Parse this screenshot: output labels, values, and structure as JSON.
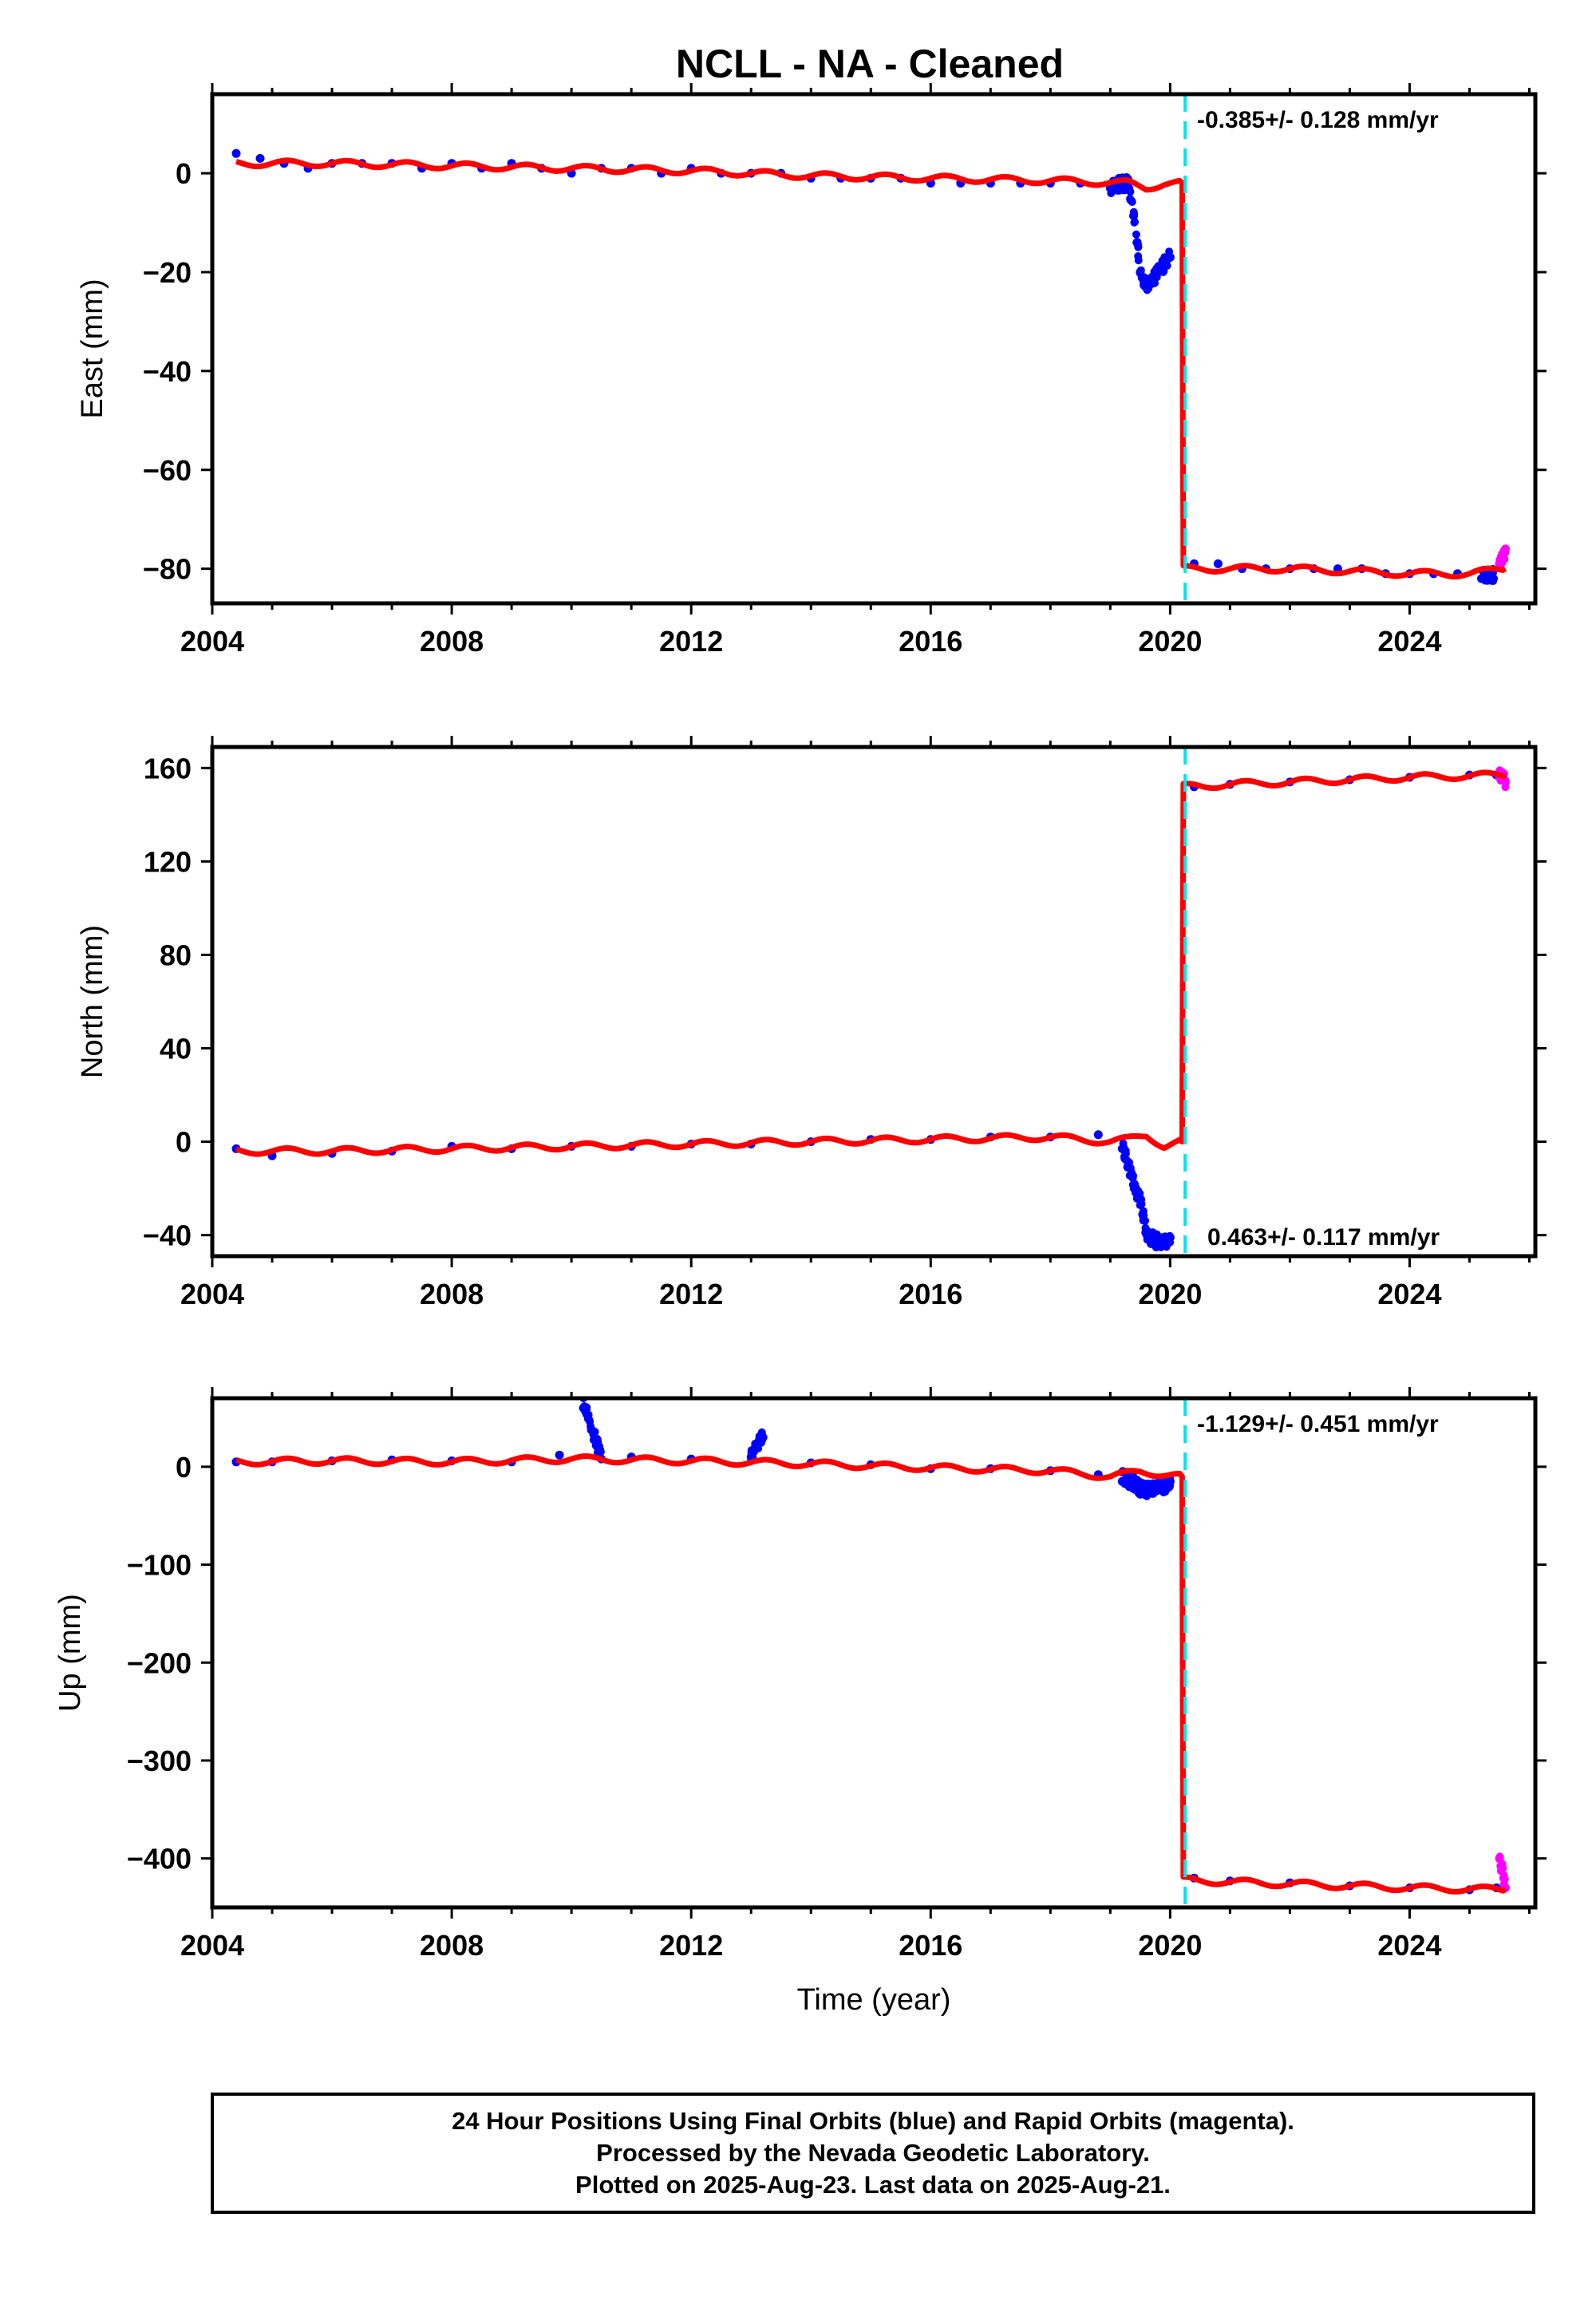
{
  "title": "NCLL  - NA - Cleaned",
  "footer_lines": [
    "24 Hour Positions Using Final Orbits (blue) and Rapid Orbits (magenta).",
    "Processed by the Nevada Geodetic Laboratory.",
    "Plotted on 2025-Aug-23. Last data on 2025-Aug-21."
  ],
  "colors": {
    "final_orbits": "#0000ff",
    "rapid_orbits": "#ff00ff",
    "model": "#ff0000",
    "event": "#00e5ee",
    "axis": "#000000"
  },
  "chart_data": [
    {
      "type": "scatter",
      "component": "East",
      "ylabel": "East (mm)",
      "xlabel": "",
      "xlim": [
        2004.0,
        2026.1
      ],
      "ylim": [
        -87,
        16
      ],
      "xticks": [
        2004,
        2008,
        2012,
        2016,
        2020,
        2024
      ],
      "yticks": [
        -80,
        -60,
        -40,
        -20,
        0
      ],
      "event_line_x": 2020.25,
      "rate_text": "-0.385+/- 0.128 mm/yr",
      "rate_position": "top-right",
      "series": [
        {
          "type": "scatter",
          "color": "final",
          "points": [
            [
              2004.4,
              4
            ],
            [
              2004.8,
              3
            ],
            [
              2005.2,
              2
            ],
            [
              2005.6,
              1
            ],
            [
              2006.0,
              2
            ],
            [
              2006.5,
              2
            ],
            [
              2007.0,
              2
            ],
            [
              2007.5,
              1
            ],
            [
              2008.0,
              2
            ],
            [
              2008.5,
              1
            ],
            [
              2009.0,
              2
            ],
            [
              2009.5,
              1
            ],
            [
              2010.0,
              0
            ],
            [
              2010.5,
              1
            ],
            [
              2011.0,
              1
            ],
            [
              2011.5,
              0
            ],
            [
              2012.0,
              1
            ],
            [
              2012.5,
              0
            ],
            [
              2013.0,
              0
            ],
            [
              2013.5,
              0
            ],
            [
              2014.0,
              -1
            ],
            [
              2014.5,
              -1
            ],
            [
              2015.0,
              -1
            ],
            [
              2015.5,
              -1
            ],
            [
              2016.0,
              -2
            ],
            [
              2016.5,
              -2
            ],
            [
              2017.0,
              -2
            ],
            [
              2017.5,
              -2
            ],
            [
              2018.0,
              -2
            ],
            [
              2018.5,
              -2
            ],
            [
              2019.0,
              -3
            ],
            [
              2019.3,
              -3
            ],
            [
              2019.45,
              -14
            ],
            [
              2019.5,
              -20
            ],
            [
              2019.6,
              -22
            ],
            [
              2019.7,
              -21
            ],
            [
              2019.8,
              -19
            ],
            [
              2019.9,
              -18
            ],
            [
              2020.0,
              -17
            ],
            [
              2020.4,
              -79
            ],
            [
              2020.8,
              -79
            ],
            [
              2021.2,
              -80
            ],
            [
              2021.6,
              -80
            ],
            [
              2022.0,
              -80
            ],
            [
              2022.4,
              -80
            ],
            [
              2022.8,
              -80
            ],
            [
              2023.2,
              -80
            ],
            [
              2023.6,
              -81
            ],
            [
              2024.0,
              -81
            ],
            [
              2024.4,
              -81
            ],
            [
              2024.8,
              -81
            ],
            [
              2025.2,
              -82
            ],
            [
              2025.4,
              -82
            ]
          ]
        },
        {
          "type": "scatter",
          "color": "rapid",
          "points": [
            [
              2025.5,
              -79
            ],
            [
              2025.55,
              -77
            ],
            [
              2025.6,
              -76
            ]
          ]
        },
        {
          "type": "line",
          "color": "model",
          "points": [
            [
              2004.4,
              2
            ],
            [
              2005.0,
              2
            ],
            [
              2006.0,
              2
            ],
            [
              2008.0,
              1.5
            ],
            [
              2010.0,
              1
            ],
            [
              2012.0,
              0.5
            ],
            [
              2014.0,
              -0.5
            ],
            [
              2016.0,
              -1
            ],
            [
              2018.0,
              -1.5
            ],
            [
              2019.3,
              -2
            ],
            [
              2019.6,
              -3
            ],
            [
              2019.9,
              -2
            ],
            [
              2020.2,
              -2
            ],
            [
              2020.22,
              -80
            ],
            [
              2021.0,
              -80
            ],
            [
              2022.0,
              -80
            ],
            [
              2023.0,
              -80.5
            ],
            [
              2024.0,
              -81
            ],
            [
              2025.0,
              -81
            ],
            [
              2025.6,
              -80
            ]
          ]
        }
      ]
    },
    {
      "type": "scatter",
      "component": "North",
      "ylabel": "North (mm)",
      "xlabel": "",
      "xlim": [
        2004.0,
        2026.1
      ],
      "ylim": [
        -49,
        169
      ],
      "xticks": [
        2004,
        2008,
        2012,
        2016,
        2020,
        2024
      ],
      "yticks": [
        -40,
        0,
        40,
        80,
        120,
        160
      ],
      "event_line_x": 2020.25,
      "rate_text": "0.463+/- 0.117 mm/yr",
      "rate_position": "bottom-right",
      "series": [
        {
          "type": "scatter",
          "color": "final",
          "points": [
            [
              2004.4,
              -3
            ],
            [
              2005.0,
              -6
            ],
            [
              2006.0,
              -5
            ],
            [
              2007.0,
              -4
            ],
            [
              2008.0,
              -2
            ],
            [
              2009.0,
              -3
            ],
            [
              2010.0,
              -2
            ],
            [
              2011.0,
              -2
            ],
            [
              2012.0,
              -1
            ],
            [
              2013.0,
              -1
            ],
            [
              2014.0,
              0
            ],
            [
              2015.0,
              1
            ],
            [
              2016.0,
              1
            ],
            [
              2017.0,
              2
            ],
            [
              2018.0,
              2
            ],
            [
              2018.8,
              3
            ],
            [
              2019.2,
              -3
            ],
            [
              2019.4,
              -20
            ],
            [
              2019.5,
              -25
            ],
            [
              2019.6,
              -38
            ],
            [
              2019.7,
              -40
            ],
            [
              2019.8,
              -41
            ],
            [
              2019.9,
              -42
            ],
            [
              2020.0,
              -41
            ],
            [
              2020.4,
              152
            ],
            [
              2021.0,
              153
            ],
            [
              2022.0,
              154
            ],
            [
              2023.0,
              155
            ],
            [
              2024.0,
              156
            ],
            [
              2025.0,
              157
            ],
            [
              2025.45,
              157
            ]
          ]
        },
        {
          "type": "scatter",
          "color": "rapid",
          "points": [
            [
              2025.5,
              156
            ],
            [
              2025.55,
              158
            ],
            [
              2025.6,
              154
            ]
          ]
        },
        {
          "type": "line",
          "color": "model",
          "points": [
            [
              2004.4,
              -4
            ],
            [
              2006.0,
              -4
            ],
            [
              2008.0,
              -3
            ],
            [
              2010.0,
              -2
            ],
            [
              2012.0,
              -1
            ],
            [
              2014.0,
              0
            ],
            [
              2016.0,
              1
            ],
            [
              2018.0,
              2
            ],
            [
              2019.0,
              0
            ],
            [
              2019.3,
              1
            ],
            [
              2019.6,
              3
            ],
            [
              2019.9,
              -2
            ],
            [
              2020.2,
              0
            ],
            [
              2020.22,
              152
            ],
            [
              2021.0,
              153
            ],
            [
              2022.0,
              154
            ],
            [
              2023.0,
              155
            ],
            [
              2024.0,
              156
            ],
            [
              2025.6,
              157
            ]
          ]
        }
      ]
    },
    {
      "type": "scatter",
      "component": "Up",
      "ylabel": "Up (mm)",
      "xlabel": "Time (year)",
      "xlim": [
        2004.0,
        2026.1
      ],
      "ylim": [
        -450,
        70
      ],
      "xticks": [
        2004,
        2008,
        2012,
        2016,
        2020,
        2024
      ],
      "yticks": [
        -400,
        -300,
        -200,
        -100,
        0
      ],
      "event_line_x": 2020.25,
      "rate_text": "-1.129+/- 0.451 mm/yr",
      "rate_position": "top-right",
      "series": [
        {
          "type": "scatter",
          "color": "final",
          "points": [
            [
              2004.4,
              5
            ],
            [
              2005.0,
              5
            ],
            [
              2006.0,
              6
            ],
            [
              2007.0,
              7
            ],
            [
              2008.0,
              6
            ],
            [
              2009.0,
              5
            ],
            [
              2009.8,
              12
            ],
            [
              2010.2,
              60
            ],
            [
              2010.5,
              8
            ],
            [
              2011.0,
              10
            ],
            [
              2012.0,
              8
            ],
            [
              2013.0,
              10
            ],
            [
              2013.2,
              30
            ],
            [
              2014.0,
              4
            ],
            [
              2015.0,
              2
            ],
            [
              2016.0,
              -2
            ],
            [
              2017.0,
              -2
            ],
            [
              2018.0,
              -4
            ],
            [
              2018.8,
              -8
            ],
            [
              2019.2,
              -15
            ],
            [
              2019.5,
              -22
            ],
            [
              2019.8,
              -18
            ],
            [
              2020.0,
              -15
            ],
            [
              2020.4,
              -420
            ],
            [
              2021.0,
              -423
            ],
            [
              2022.0,
              -425
            ],
            [
              2023.0,
              -428
            ],
            [
              2024.0,
              -430
            ],
            [
              2025.0,
              -432
            ],
            [
              2025.45,
              -430
            ]
          ]
        },
        {
          "type": "scatter",
          "color": "rapid",
          "points": [
            [
              2025.5,
              -400
            ],
            [
              2025.55,
              -410
            ],
            [
              2025.6,
              -430
            ]
          ]
        },
        {
          "type": "line",
          "color": "model",
          "points": [
            [
              2004.4,
              5
            ],
            [
              2006.0,
              6
            ],
            [
              2008.0,
              5
            ],
            [
              2010.0,
              8
            ],
            [
              2012.0,
              6
            ],
            [
              2014.0,
              3
            ],
            [
              2016.0,
              -1
            ],
            [
              2018.0,
              -4
            ],
            [
              2019.0,
              -10
            ],
            [
              2019.5,
              -5
            ],
            [
              2020.0,
              -8
            ],
            [
              2020.2,
              -10
            ],
            [
              2020.22,
              -422
            ],
            [
              2021.0,
              -424
            ],
            [
              2022.0,
              -426
            ],
            [
              2023.0,
              -428
            ],
            [
              2024.0,
              -430
            ],
            [
              2025.6,
              -432
            ]
          ]
        }
      ]
    }
  ]
}
